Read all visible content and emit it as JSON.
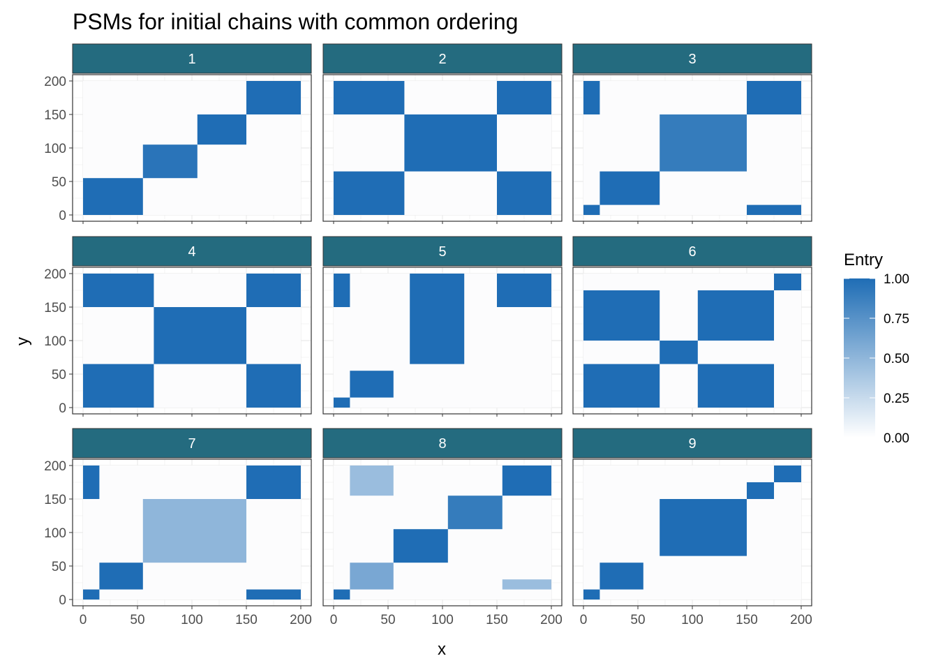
{
  "chart_data": {
    "type": "heatmap",
    "title": "PSMs for initial chains with common ordering",
    "xlabel": "x",
    "ylabel": "y",
    "xlim": [
      0,
      200
    ],
    "ylim": [
      0,
      200
    ],
    "x_ticks": [
      "0",
      "50",
      "100",
      "150",
      "200"
    ],
    "y_ticks": [
      "0",
      "50",
      "100",
      "150",
      "200"
    ],
    "facet_layout": "3x3",
    "legend": {
      "title": "Entry",
      "position": "right",
      "ticks": [
        "0.00",
        "0.25",
        "0.50",
        "0.75",
        "1.00"
      ],
      "range": [
        0,
        1
      ],
      "color_low": "#ffffff",
      "color_high": "#1f6db5"
    },
    "colors": {
      "strip_bg": "#246b7f",
      "strip_text": "#ffffff",
      "high": "#1f6db5",
      "grid": "#ebebeb"
    },
    "panels": [
      {
        "label": "1",
        "blocks": [
          {
            "x": [
              0,
              55
            ],
            "y": [
              0,
              55
            ],
            "v": 1
          },
          {
            "x": [
              55,
              105
            ],
            "y": [
              55,
              105
            ],
            "v": 0.95
          },
          {
            "x": [
              105,
              150
            ],
            "y": [
              105,
              150
            ],
            "v": 1
          },
          {
            "x": [
              150,
              200
            ],
            "y": [
              150,
              200
            ],
            "v": 1
          }
        ]
      },
      {
        "label": "2",
        "blocks": [
          {
            "x": [
              0,
              65
            ],
            "y": [
              0,
              65
            ],
            "v": 1
          },
          {
            "x": [
              0,
              65
            ],
            "y": [
              150,
              200
            ],
            "v": 1
          },
          {
            "x": [
              150,
              200
            ],
            "y": [
              0,
              65
            ],
            "v": 1
          },
          {
            "x": [
              150,
              200
            ],
            "y": [
              150,
              200
            ],
            "v": 1
          },
          {
            "x": [
              65,
              150
            ],
            "y": [
              65,
              150
            ],
            "v": 1
          },
          {
            "x": [
              150,
              200
            ],
            "y": [
              150,
              200
            ],
            "v": 1
          }
        ]
      },
      {
        "label": "3",
        "blocks": [
          {
            "x": [
              0,
              15
            ],
            "y": [
              150,
              200
            ],
            "v": 1
          },
          {
            "x": [
              150,
              200
            ],
            "y": [
              150,
              200
            ],
            "v": 1
          },
          {
            "x": [
              0,
              15
            ],
            "y": [
              0,
              15
            ],
            "v": 1
          },
          {
            "x": [
              150,
              200
            ],
            "y": [
              0,
              15
            ],
            "v": 1
          },
          {
            "x": [
              15,
              70
            ],
            "y": [
              15,
              65
            ],
            "v": 1
          },
          {
            "x": [
              70,
              150
            ],
            "y": [
              65,
              150
            ],
            "v": 0.9
          }
        ]
      },
      {
        "label": "4",
        "blocks": [
          {
            "x": [
              0,
              65
            ],
            "y": [
              0,
              65
            ],
            "v": 1
          },
          {
            "x": [
              0,
              65
            ],
            "y": [
              150,
              200
            ],
            "v": 1
          },
          {
            "x": [
              150,
              200
            ],
            "y": [
              0,
              65
            ],
            "v": 1
          },
          {
            "x": [
              150,
              200
            ],
            "y": [
              150,
              200
            ],
            "v": 1
          },
          {
            "x": [
              65,
              150
            ],
            "y": [
              65,
              150
            ],
            "v": 1
          }
        ]
      },
      {
        "label": "5",
        "blocks": [
          {
            "x": [
              0,
              15
            ],
            "y": [
              0,
              15
            ],
            "v": 1
          },
          {
            "x": [
              15,
              55
            ],
            "y": [
              15,
              55
            ],
            "v": 1
          },
          {
            "x": [
              70,
              120
            ],
            "y": [
              65,
              200
            ],
            "v": 1
          },
          {
            "x": [
              150,
              200
            ],
            "y": [
              150,
              200
            ],
            "v": 1
          },
          {
            "x": [
              0,
              15
            ],
            "y": [
              150,
              200
            ],
            "v": 1
          }
        ]
      },
      {
        "label": "6",
        "blocks": [
          {
            "x": [
              0,
              70
            ],
            "y": [
              0,
              65
            ],
            "v": 1
          },
          {
            "x": [
              0,
              70
            ],
            "y": [
              100,
              175
            ],
            "v": 1
          },
          {
            "x": [
              105,
              175
            ],
            "y": [
              0,
              65
            ],
            "v": 1
          },
          {
            "x": [
              105,
              175
            ],
            "y": [
              100,
              175
            ],
            "v": 1
          },
          {
            "x": [
              70,
              105
            ],
            "y": [
              65,
              100
            ],
            "v": 1
          },
          {
            "x": [
              175,
              200
            ],
            "y": [
              175,
              200
            ],
            "v": 1
          }
        ]
      },
      {
        "label": "7",
        "blocks": [
          {
            "x": [
              0,
              15
            ],
            "y": [
              0,
              15
            ],
            "v": 1
          },
          {
            "x": [
              15,
              55
            ],
            "y": [
              15,
              55
            ],
            "v": 1
          },
          {
            "x": [
              0,
              15
            ],
            "y": [
              150,
              200
            ],
            "v": 1
          },
          {
            "x": [
              150,
              200
            ],
            "y": [
              150,
              200
            ],
            "v": 1
          },
          {
            "x": [
              150,
              200
            ],
            "y": [
              0,
              15
            ],
            "v": 1
          },
          {
            "x": [
              55,
              150
            ],
            "y": [
              55,
              150
            ],
            "v": 0.5
          }
        ]
      },
      {
        "label": "8",
        "blocks": [
          {
            "x": [
              0,
              15
            ],
            "y": [
              0,
              15
            ],
            "v": 1
          },
          {
            "x": [
              15,
              55
            ],
            "y": [
              15,
              55
            ],
            "v": 0.6
          },
          {
            "x": [
              55,
              105
            ],
            "y": [
              55,
              105
            ],
            "v": 1
          },
          {
            "x": [
              105,
              155
            ],
            "y": [
              105,
              155
            ],
            "v": 0.9
          },
          {
            "x": [
              155,
              200
            ],
            "y": [
              155,
              200
            ],
            "v": 1
          },
          {
            "x": [
              15,
              55
            ],
            "y": [
              155,
              200
            ],
            "v": 0.45
          },
          {
            "x": [
              155,
              200
            ],
            "y": [
              15,
              30
            ],
            "v": 0.45
          }
        ]
      },
      {
        "label": "9",
        "blocks": [
          {
            "x": [
              0,
              15
            ],
            "y": [
              0,
              15
            ],
            "v": 1
          },
          {
            "x": [
              15,
              55
            ],
            "y": [
              15,
              55
            ],
            "v": 1
          },
          {
            "x": [
              70,
              150
            ],
            "y": [
              65,
              150
            ],
            "v": 1
          },
          {
            "x": [
              150,
              175
            ],
            "y": [
              150,
              175
            ],
            "v": 1
          },
          {
            "x": [
              175,
              200
            ],
            "y": [
              175,
              200
            ],
            "v": 1
          }
        ]
      }
    ]
  }
}
